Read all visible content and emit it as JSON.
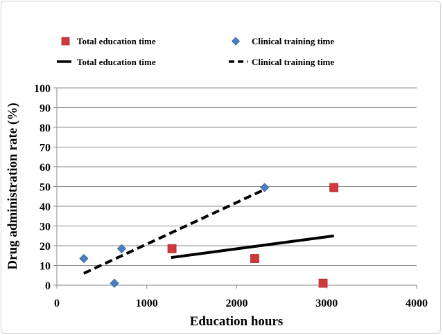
{
  "chart_data": {
    "type": "scatter",
    "xlabel": "Education hours",
    "ylabel": "Drug administration rate (%)",
    "xlim": [
      0,
      4000
    ],
    "ylim": [
      0,
      100
    ],
    "x_ticks": [
      "0",
      "1000",
      "2000",
      "3000",
      "4000"
    ],
    "y_ticks": [
      "0",
      "10",
      "20",
      "30",
      "40",
      "50",
      "60",
      "70",
      "80",
      "90",
      "100"
    ],
    "grid": "horizontal",
    "legend_position": "top",
    "series": [
      {
        "name": "Total education time",
        "kind": "points",
        "marker": "square",
        "color": "#d0393b",
        "points": [
          [
            1280,
            18.5
          ],
          [
            2200,
            13.5
          ],
          [
            2960,
            1
          ],
          [
            3080,
            49.5
          ]
        ]
      },
      {
        "name": "Clinical training time",
        "kind": "points",
        "marker": "diamond",
        "color": "#4a7fc1",
        "points": [
          [
            300,
            13.5
          ],
          [
            640,
            1
          ],
          [
            720,
            18.5
          ],
          [
            2310,
            49.5
          ]
        ]
      },
      {
        "name": "Total education time",
        "kind": "trendline",
        "style": "solid",
        "color": "#000000",
        "points": [
          [
            1270,
            14
          ],
          [
            3080,
            25
          ]
        ]
      },
      {
        "name": "Clinical training time",
        "kind": "trendline",
        "style": "dashed",
        "color": "#000000",
        "points": [
          [
            300,
            6
          ],
          [
            2310,
            48.5
          ]
        ]
      }
    ]
  }
}
